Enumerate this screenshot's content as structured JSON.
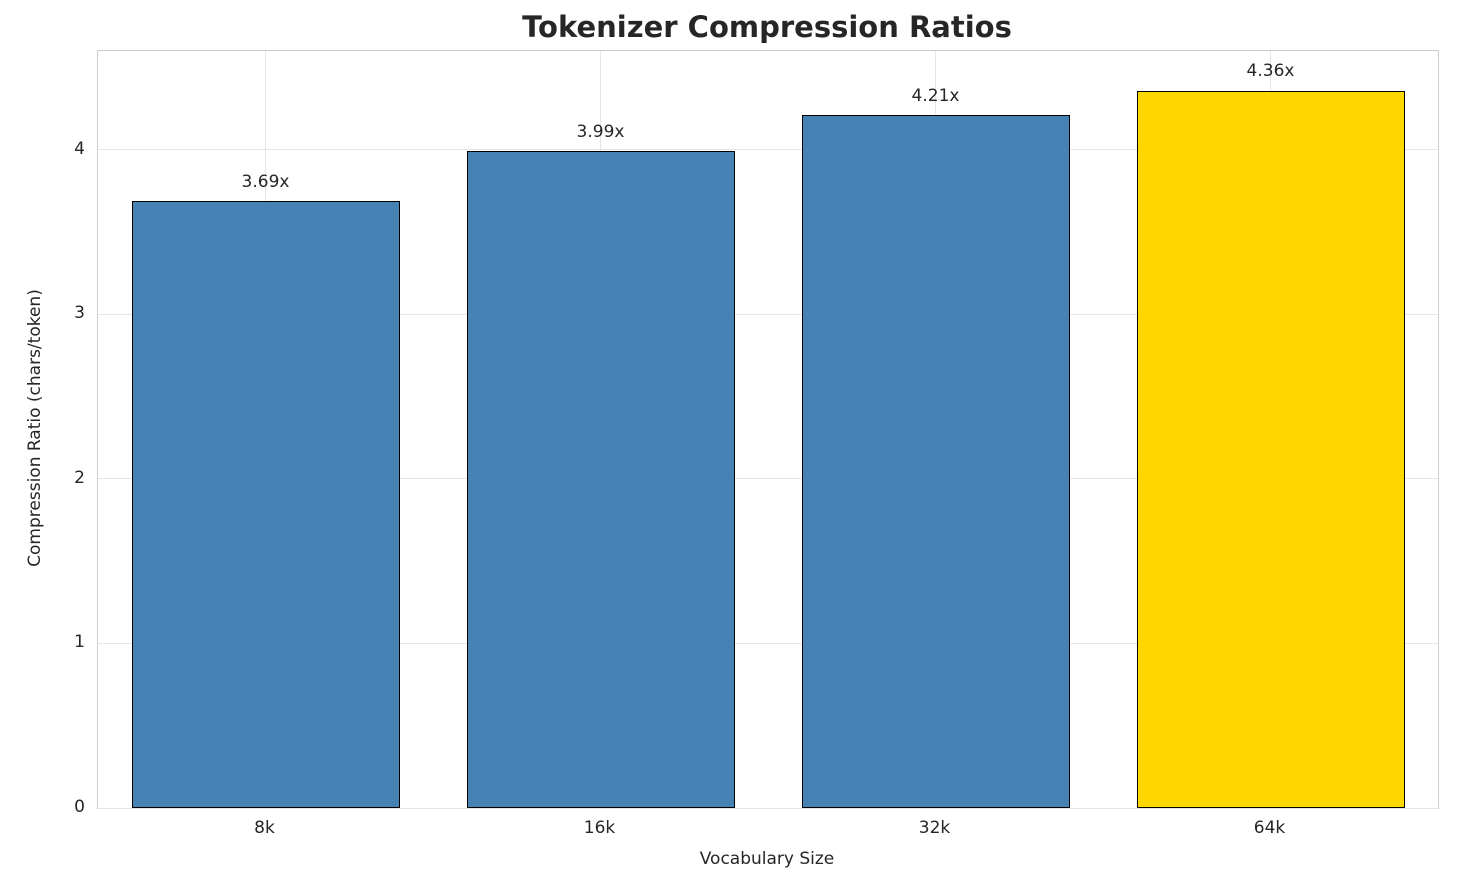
{
  "chart_data": {
    "type": "bar",
    "title": "Tokenizer Compression Ratios",
    "xlabel": "Vocabulary Size",
    "ylabel": "Compression Ratio (chars/token)",
    "categories": [
      "8k",
      "16k",
      "32k",
      "64k"
    ],
    "values": [
      3.69,
      3.99,
      4.21,
      4.36
    ],
    "value_labels": [
      "3.69x",
      "3.99x",
      "4.21x",
      "4.36x"
    ],
    "yticks": [
      0,
      1,
      2,
      3,
      4
    ],
    "ylim": [
      0,
      4.6
    ],
    "grid": true,
    "legend": "none",
    "bar_colors": [
      "#4682B4",
      "#4682B4",
      "#4682B4",
      "#FFD700"
    ],
    "bar_edge_color": "#000000",
    "grid_color": "#e5e5e5",
    "text_color": "#262626",
    "background_color": "#ffffff"
  }
}
